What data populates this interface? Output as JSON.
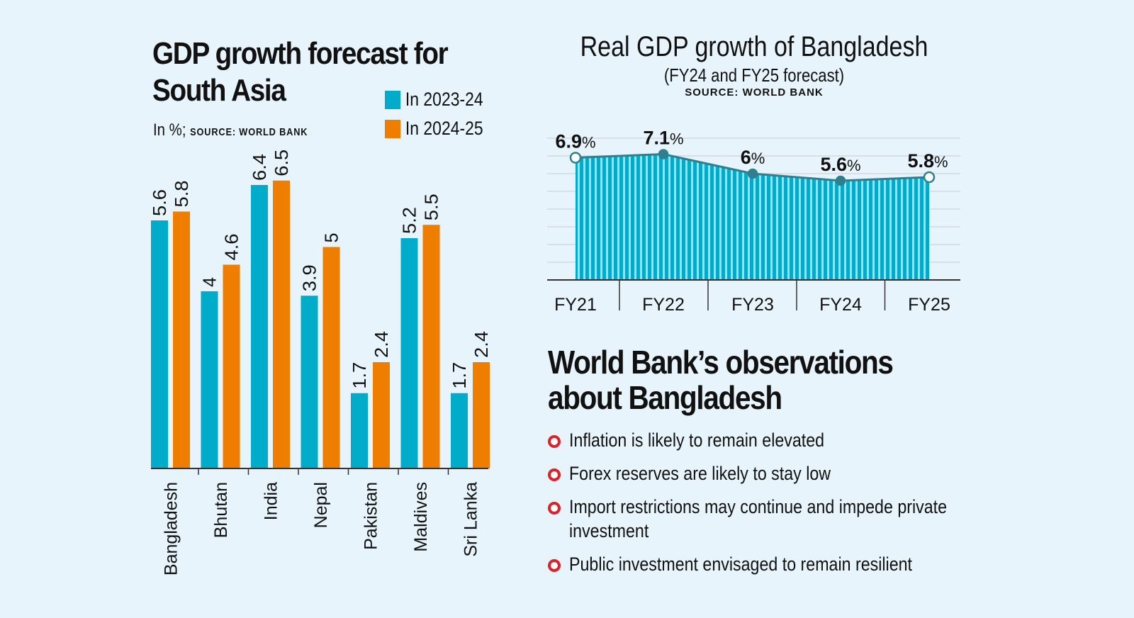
{
  "left": {
    "title_line1": "GDP growth forecast for",
    "title_line2": "South Asia",
    "subtitle": "In %;",
    "source": "source: world bank"
  },
  "right": {
    "title": "Real GDP growth of Bangladesh",
    "subtitle": "(FY24 and FY25 forecast)",
    "source": "source: world bank"
  },
  "observations": {
    "title_line1": "World Bank’s observations",
    "title_line2": "about Bangladesh",
    "items": [
      "Inflation is likely to remain elevated",
      "Forex reserves are likely to stay low",
      "Import restrictions may continue and impede private",
      "investment",
      "Public investment envisaged to remain resilient"
    ]
  },
  "colors": {
    "background": "#e8f4fc",
    "cyan": "#00acc9",
    "orange": "#ef7d00",
    "line": "#2f7f8f",
    "bullet": "#d9232d"
  },
  "chart_data": [
    {
      "type": "bar",
      "categories": [
        "Bangladesh",
        "Bhutan",
        "India",
        "Nepal",
        "Pakistan",
        "Maldives",
        "Sri Lanka"
      ],
      "series": [
        {
          "name": "In 2023-24",
          "values": [
            5.6,
            4,
            6.4,
            3.9,
            1.7,
            5.2,
            1.7
          ],
          "labels": [
            "5.6",
            "4",
            "6.4",
            "3.9",
            "1.7",
            "5.2",
            "1.7"
          ]
        },
        {
          "name": "In 2024-25",
          "values": [
            5.8,
            4.6,
            6.5,
            5,
            2.4,
            5.5,
            2.4
          ],
          "labels": [
            "5.8",
            "4.6",
            "6.5",
            "5",
            "2.4",
            "5.5",
            "2.4"
          ]
        }
      ],
      "ylim": [
        0,
        6.5
      ],
      "legend": "top-right"
    },
    {
      "type": "area",
      "categories": [
        "FY21",
        "FY22",
        "FY23",
        "FY24",
        "FY25"
      ],
      "values": [
        6.9,
        7.1,
        6,
        5.6,
        5.8
      ],
      "labels": [
        "6.9",
        "7.1",
        "6",
        "5.6",
        "5.8"
      ],
      "unit": "%",
      "ylim": [
        0,
        8.2
      ],
      "grid": true
    }
  ]
}
